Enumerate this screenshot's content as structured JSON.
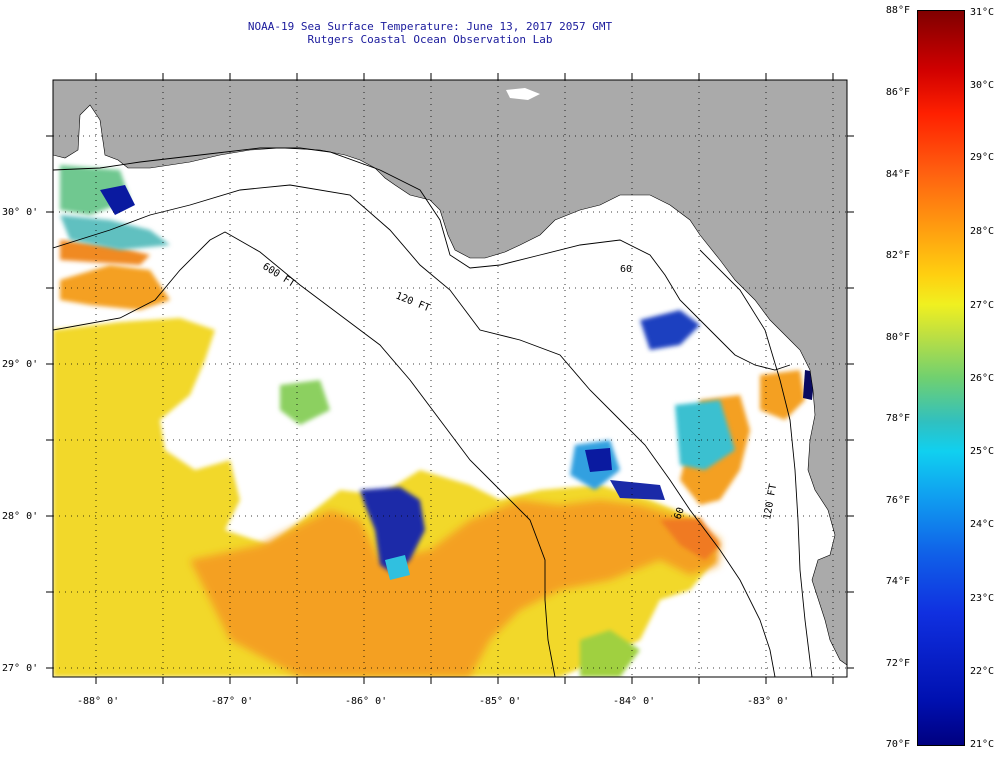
{
  "title": {
    "line1": "NOAA-19 Sea Surface Temperature:  June 13, 2017 2057 GMT",
    "line2": "Rutgers Coastal Ocean Observation Lab"
  },
  "map": {
    "lon_labels": [
      "-88° 0'",
      "-87° 0'",
      "-86° 0'",
      "-85° 0'",
      "-84° 0'",
      "-83° 0'"
    ],
    "lat_labels": [
      "30° 0'",
      "29° 0'",
      "28° 0'",
      "27° 0'"
    ],
    "contour_labels": [
      "600 FT",
      "120 FT",
      "60",
      "120 FT",
      "60"
    ],
    "colors": {
      "land": "#aaaaaa",
      "no_data": "#ffffff",
      "warm": "#f0a020",
      "mid": "#f0e020",
      "cold": "#0a1aa0"
    }
  },
  "colorbar": {
    "fahrenheit": [
      "88°F",
      "86°F",
      "84°F",
      "82°F",
      "80°F",
      "78°F",
      "76°F",
      "74°F",
      "72°F",
      "70°F"
    ],
    "celsius": [
      "31°C",
      "30°C",
      "29°C",
      "28°C",
      "27°C",
      "26°C",
      "25°C",
      "24°C",
      "23°C",
      "22°C",
      "21°C"
    ]
  }
}
